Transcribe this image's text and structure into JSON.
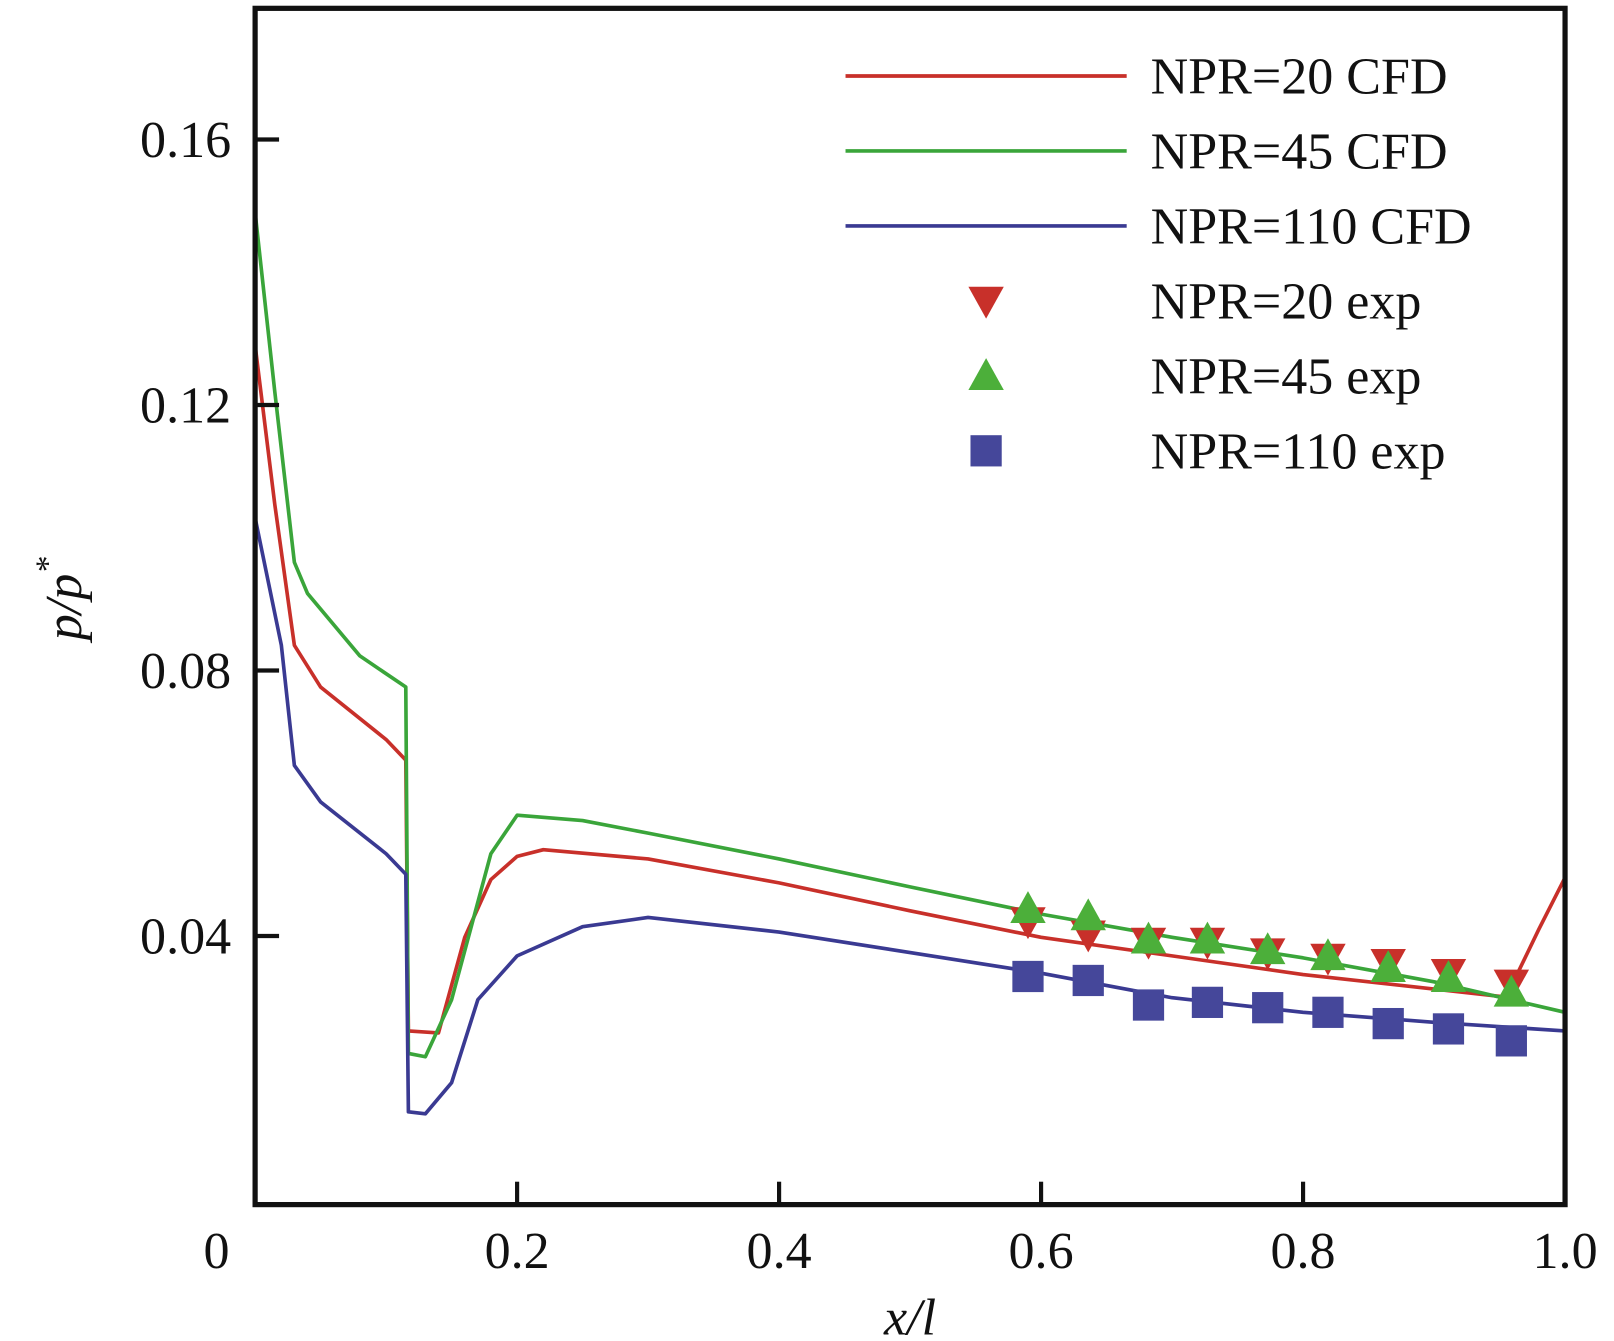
{
  "chart_data": {
    "type": "line",
    "title": "",
    "xlabel": "x/l",
    "ylabel": "p/p*",
    "ylabel_main": "p/p",
    "ylabel_sup": "*",
    "xlim": [
      0,
      1.0
    ],
    "ylim": [
      0,
      0.18
    ],
    "xticks": [
      0,
      0.2,
      0.4,
      0.6,
      0.8,
      1.0
    ],
    "xtick_labels": [
      "0",
      "0.2",
      "0.4",
      "0.6",
      "0.8",
      "1.0"
    ],
    "yticks": [
      0.04,
      0.08,
      0.12,
      0.16
    ],
    "ytick_labels": [
      "0.04",
      "0.08",
      "0.12",
      "0.16"
    ],
    "grid": false,
    "legend_position": "top-right",
    "series": [
      {
        "name": "NPR=20 CFD",
        "kind": "line",
        "color": "#c8302a",
        "x": [
          0,
          0.015,
          0.03,
          0.05,
          0.1,
          0.115,
          0.117,
          0.14,
          0.16,
          0.18,
          0.2,
          0.22,
          0.3,
          0.4,
          0.5,
          0.6,
          0.7,
          0.8,
          0.9,
          0.955,
          0.98,
          1.0
        ],
        "y": [
          0.129,
          0.105,
          0.0838,
          0.0775,
          0.0696,
          0.0665,
          0.0257,
          0.0254,
          0.0398,
          0.0485,
          0.052,
          0.053,
          0.0516,
          0.048,
          0.0438,
          0.0398,
          0.037,
          0.0342,
          0.032,
          0.0308,
          0.041,
          0.0488
        ]
      },
      {
        "name": "NPR=45 CFD",
        "kind": "line",
        "color": "#3aa53a",
        "x": [
          0,
          0.015,
          0.03,
          0.04,
          0.08,
          0.115,
          0.117,
          0.13,
          0.15,
          0.18,
          0.2,
          0.25,
          0.3,
          0.4,
          0.5,
          0.6,
          0.7,
          0.8,
          0.9,
          1.0
        ],
        "y": [
          0.149,
          0.122,
          0.0963,
          0.0916,
          0.0822,
          0.0775,
          0.0223,
          0.0218,
          0.0304,
          0.0524,
          0.0582,
          0.0574,
          0.0555,
          0.0516,
          0.0474,
          0.0433,
          0.0398,
          0.0367,
          0.0331,
          0.0285
        ]
      },
      {
        "name": "NPR=110 CFD",
        "kind": "line",
        "color": "#3a3a92",
        "x": [
          0,
          0.02,
          0.03,
          0.05,
          0.1,
          0.115,
          0.117,
          0.13,
          0.15,
          0.17,
          0.2,
          0.25,
          0.3,
          0.4,
          0.5,
          0.6,
          0.7,
          0.8,
          0.9,
          1.0
        ],
        "y": [
          0.103,
          0.0838,
          0.0657,
          0.0602,
          0.0524,
          0.0493,
          0.0135,
          0.0132,
          0.0179,
          0.0304,
          0.037,
          0.0414,
          0.0428,
          0.0406,
          0.0375,
          0.0344,
          0.0307,
          0.0285,
          0.027,
          0.0257
        ]
      },
      {
        "name": "NPR=20 exp",
        "kind": "marker",
        "marker": "triangle-down",
        "color": "#c8302a",
        "x": [
          0.59,
          0.636,
          0.682,
          0.727,
          0.773,
          0.819,
          0.865,
          0.911,
          0.959
        ],
        "y": [
          0.0422,
          0.0402,
          0.0391,
          0.0391,
          0.0375,
          0.0367,
          0.0359,
          0.0344,
          0.0328
        ]
      },
      {
        "name": "NPR=45 exp",
        "kind": "marker",
        "marker": "triangle-up",
        "color": "#4caf3a",
        "x": [
          0.59,
          0.636,
          0.682,
          0.727,
          0.773,
          0.819,
          0.865,
          0.911,
          0.959
        ],
        "y": [
          0.0441,
          0.043,
          0.0395,
          0.0395,
          0.0379,
          0.037,
          0.0352,
          0.0337,
          0.0315
        ]
      },
      {
        "name": "NPR=110 exp",
        "kind": "marker",
        "marker": "square",
        "color": "#45479a",
        "x": [
          0.59,
          0.636,
          0.682,
          0.727,
          0.773,
          0.819,
          0.865,
          0.911,
          0.959
        ],
        "y": [
          0.0339,
          0.0333,
          0.0296,
          0.03,
          0.0292,
          0.0285,
          0.0268,
          0.026,
          0.0242
        ]
      }
    ]
  }
}
